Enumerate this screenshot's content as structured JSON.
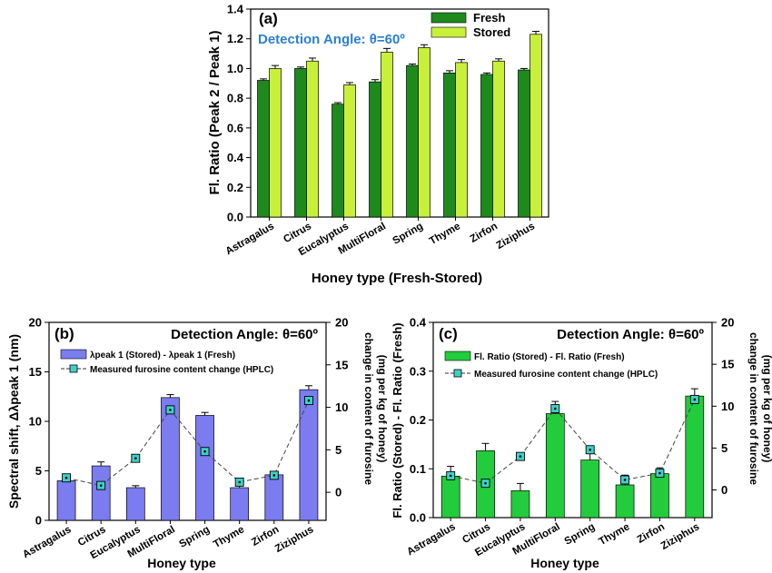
{
  "panel_a": {
    "label": "(a)",
    "annotation": "Detection Angle: θ=60º",
    "annotation_color": "#2a7fd4",
    "ylabel": "Fl. Ratio (Peak 2 / Peak 1)",
    "xlabel": "Honey type (Fresh-Stored)",
    "legend": {
      "fresh": "Fresh",
      "stored": "Stored"
    },
    "colors": {
      "fresh": "#1e8a1e",
      "stored": "#c8f03a"
    }
  },
  "panel_b": {
    "label": "(b)",
    "annotation": "Detection Angle: θ=60º",
    "ylabel_left": "Spectral shift, Δλpeak 1 (nm)",
    "ylabel_right_1": "change in content of furosine",
    "ylabel_right_2": "(mg per kg of honey)",
    "xlabel": "Honey type",
    "legend_bar": "λpeak 1 (Stored) - λpeak 1 (Fresh)",
    "legend_line": "Measured furosine content change (HPLC)",
    "colors": {
      "bar": "#7b7cf0",
      "marker": "#3fd1c8"
    }
  },
  "panel_c": {
    "label": "(c)",
    "annotation": "Detection Angle: θ=60º",
    "ylabel_left": "Fl. Ratio (Stored) - Fl. Ratio (Fresh)",
    "ylabel_right_1": "change in content of furosine",
    "ylabel_right_2": "(mg per kg of honey)",
    "xlabel": "Honey type",
    "legend_bar": "Fl. Ratio (Stored) - Fl. Ratio (Fresh)",
    "legend_line": "Measured furosine content change (HPLC)",
    "colors": {
      "bar": "#22cc3c",
      "marker": "#3fd1c8"
    }
  },
  "chart_data": [
    {
      "id": "a",
      "type": "bar",
      "categories": [
        "Astragalus",
        "Citrus",
        "Eucalyptus",
        "MultiFloral",
        "Spring",
        "Thyme",
        "Zirfon",
        "Ziziphus"
      ],
      "series": [
        {
          "name": "Fresh",
          "values": [
            0.92,
            1.0,
            0.76,
            0.91,
            1.02,
            0.97,
            0.96,
            0.99
          ],
          "errors": [
            0.01,
            0.01,
            0.01,
            0.015,
            0.01,
            0.015,
            0.01,
            0.01
          ]
        },
        {
          "name": "Stored",
          "values": [
            1.0,
            1.05,
            0.89,
            1.11,
            1.14,
            1.04,
            1.05,
            1.23
          ],
          "errors": [
            0.02,
            0.02,
            0.015,
            0.025,
            0.02,
            0.02,
            0.015,
            0.02
          ]
        }
      ],
      "ylim": [
        0,
        1.4
      ],
      "yticks": [
        "0.0",
        "0.2",
        "0.4",
        "0.6",
        "0.8",
        "1.0",
        "1.2",
        "1.4"
      ],
      "title": "",
      "xlabel": "Honey type (Fresh-Stored)",
      "ylabel": "Fl. Ratio (Peak 2 / Peak 1)",
      "legend_position": "top-right"
    },
    {
      "id": "b",
      "type": "bar",
      "categories": [
        "Astragalus",
        "Citrus",
        "Eucalyptus",
        "MultiFloral",
        "Spring",
        "Thyme",
        "Zirfon",
        "Ziziphus"
      ],
      "series": [
        {
          "name": "λpeak 1 (Stored) - λpeak 1 (Fresh)",
          "axis": "left",
          "values": [
            4.0,
            5.5,
            3.3,
            12.4,
            10.6,
            3.3,
            4.6,
            13.2
          ],
          "errors": [
            0.2,
            0.4,
            0.2,
            0.3,
            0.3,
            0.2,
            0.2,
            0.4
          ]
        },
        {
          "name": "Measured furosine content change (HPLC)",
          "axis": "right",
          "type": "line",
          "values": [
            1.7,
            0.8,
            4.0,
            9.7,
            4.8,
            1.2,
            2.0,
            10.8
          ]
        }
      ],
      "ylim_left": [
        0,
        20
      ],
      "yticks_left": [
        "0",
        "5",
        "10",
        "15",
        "20"
      ],
      "ylim_right": [
        -3.3,
        20
      ],
      "yticks_right": [
        "0",
        "5",
        "10",
        "15",
        "20"
      ],
      "xlabel": "Honey type",
      "ylabel": "Spectral shift, Δλpeak 1 (nm)",
      "ylabel_right": "change in content of furosine (mg per kg of honey)",
      "legend_position": "top-left"
    },
    {
      "id": "c",
      "type": "bar",
      "categories": [
        "Astragalus",
        "Citrus",
        "Eucalyptus",
        "MultiFloral",
        "Spring",
        "Thyme",
        "Zirfon",
        "Ziziphus"
      ],
      "series": [
        {
          "name": "Fl. Ratio (Stored) - Fl. Ratio (Fresh)",
          "axis": "left",
          "values": [
            0.085,
            0.137,
            0.055,
            0.213,
            0.118,
            0.067,
            0.09,
            0.249
          ],
          "errors": [
            0.02,
            0.015,
            0.015,
            0.025,
            0.02,
            0.02,
            0.012,
            0.015
          ]
        },
        {
          "name": "Measured furosine content change (HPLC)",
          "axis": "right",
          "type": "line",
          "values": [
            1.7,
            0.8,
            4.0,
            9.7,
            4.8,
            1.2,
            2.0,
            10.8
          ]
        }
      ],
      "ylim_left": [
        0,
        0.4
      ],
      "yticks_left": [
        "0.0",
        "0.1",
        "0.2",
        "0.3",
        "0.4"
      ],
      "ylim_right": [
        -3.3,
        20
      ],
      "yticks_right": [
        "0",
        "5",
        "10",
        "15",
        "20"
      ],
      "xlabel": "Honey type",
      "ylabel": "Fl. Ratio (Stored) - Fl. Ratio (Fresh)",
      "ylabel_right": "change in content of furosine (mg per kg of honey)",
      "legend_position": "top-left"
    }
  ]
}
